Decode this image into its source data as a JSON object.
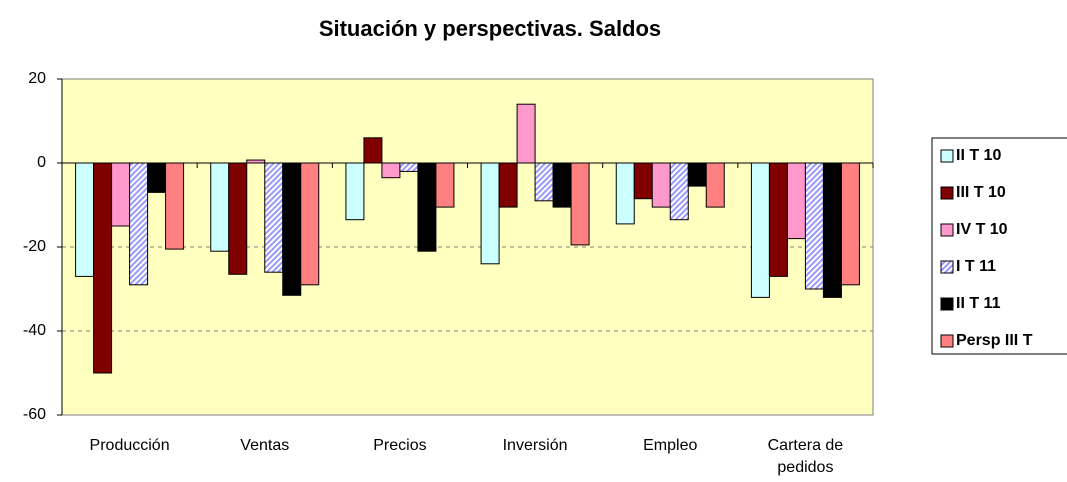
{
  "chart_data": {
    "type": "bar",
    "title": "Situación y perspectivas. Saldos",
    "categories": [
      "Producción",
      "Ventas",
      "Precios",
      "Inversión",
      "Empleo",
      "Cartera de pedidos"
    ],
    "series": [
      {
        "name": "II T 10",
        "color": "#ccffff",
        "values": [
          -27,
          -21,
          -13.5,
          -24,
          -14.5,
          -32
        ]
      },
      {
        "name": "III T 10",
        "color": "#800000",
        "values": [
          -50,
          -26.5,
          6,
          -10.5,
          -8.5,
          -27
        ]
      },
      {
        "name": "IV T 10",
        "color": "#ff99cc",
        "values": [
          -15,
          0.7,
          -3.5,
          14,
          -10.5,
          -18
        ]
      },
      {
        "name": "I T 11",
        "color": "#9999ff",
        "hatch": true,
        "values": [
          -29,
          -26,
          -2,
          -9,
          -13.5,
          -30
        ]
      },
      {
        "name": "II T 11",
        "color": "#000000",
        "values": [
          -7,
          -31.5,
          -21,
          -10.5,
          -5.5,
          -32
        ]
      },
      {
        "name": "Persp III T",
        "color": "#ff8080",
        "values": [
          -20.5,
          -29,
          -10.5,
          -19.5,
          -10.5,
          -29
        ]
      }
    ],
    "ylim": [
      -60,
      20
    ],
    "yticks": [
      -60,
      -40,
      -20,
      0,
      20
    ],
    "grid": true,
    "legend": "right"
  }
}
